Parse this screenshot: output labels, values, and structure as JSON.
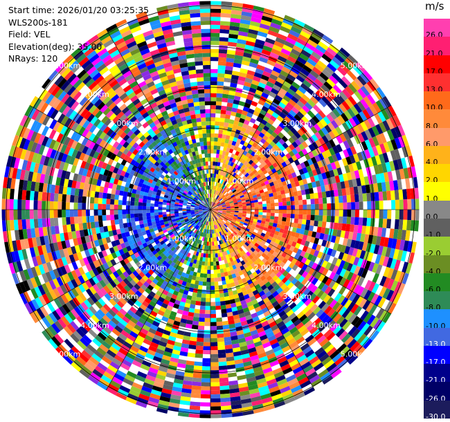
{
  "header": {
    "start_time": "Start time: 2026/01/20 03:25:35",
    "site": "WLS200s-181",
    "field": "Field: VEL",
    "elevation": "Elevation(deg): 35.00",
    "nrays": "NRays: 120"
  },
  "colorbar": {
    "unit": "m/s",
    "ticks": [
      "26.0",
      "21.0",
      "17.0",
      "13.0",
      "10.0",
      "8.0",
      "6.0",
      "4.0",
      "2.0",
      "1.0",
      "0.0",
      "-1.0",
      "-2.0",
      "-4.0",
      "-6.0",
      "-8.0",
      "-10.0",
      "-13.0",
      "-17.0",
      "-21.0",
      "-26.0",
      "-30.0"
    ],
    "colors": [
      "#ff3fb0",
      "#ff1f72",
      "#ff0000",
      "#ff3030",
      "#ff6a1a",
      "#ff8a3a",
      "#ff9a6a",
      "#ffb21a",
      "#ffd600",
      "#ffff00",
      "#888888",
      "#606060",
      "#9acd32",
      "#6b8e23",
      "#228b22",
      "#2e8b57",
      "#1e90ff",
      "#4169e1",
      "#0000ff",
      "#00008b",
      "#000066",
      "#1c1c5c"
    ]
  },
  "chart_data": {
    "type": "heatmap",
    "projection": "PPI polar",
    "field": "VEL",
    "units": "m/s",
    "elevation_deg": 35.0,
    "nrays": 120,
    "range_ring_labels": [
      "1.00km",
      "2.00km",
      "3.00km",
      "4.00km",
      "5.00km"
    ],
    "color_range": [
      -30.0,
      26.0
    ]
  }
}
